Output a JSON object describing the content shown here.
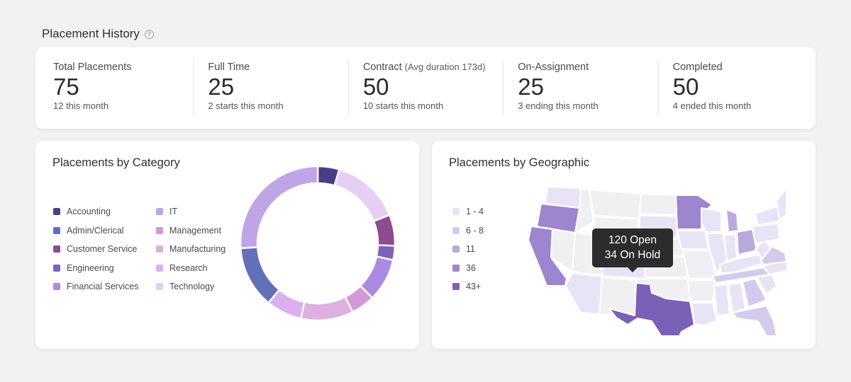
{
  "page": {
    "title": "Placement History",
    "help_icon": "question-circle-icon"
  },
  "stats": [
    {
      "label": "Total Placements",
      "note": "",
      "value": "75",
      "sub": "12 this month"
    },
    {
      "label": "Full Time",
      "note": "",
      "value": "25",
      "sub": "2 starts this month"
    },
    {
      "label": "Contract",
      "note": "(Avg duration 173d)",
      "value": "50",
      "sub": "10 starts this month"
    },
    {
      "label": "On-Assignment",
      "note": "",
      "value": "25",
      "sub": "3 ending this month"
    },
    {
      "label": "Completed",
      "note": "",
      "value": "50",
      "sub": "4 ended this month"
    }
  ],
  "category": {
    "title": "Placements by Category",
    "legend": [
      {
        "label": "Accounting",
        "color": "#4a3f86"
      },
      {
        "label": "Admin/Clerical",
        "color": "#6270b8"
      },
      {
        "label": "Customer Service",
        "color": "#8e4b8f"
      },
      {
        "label": "Engineering",
        "color": "#7a63b8"
      },
      {
        "label": "Financial Services",
        "color": "#ab8be2"
      },
      {
        "label": "IT",
        "color": "#bfa5e6"
      },
      {
        "label": "Management",
        "color": "#d398d6"
      },
      {
        "label": "Manufacturing",
        "color": "#ddb0e0"
      },
      {
        "label": "Research",
        "color": "#dcb0ef"
      },
      {
        "label": "Technology",
        "color": "#e6cff5"
      }
    ]
  },
  "chart_data": {
    "type": "pie",
    "variant": "donut",
    "categories": [
      "Accounting",
      "Technology",
      "Customer Service",
      "Engineering",
      "Financial Services",
      "Management",
      "Manufacturing",
      "Research",
      "Admin/Clerical",
      "IT"
    ],
    "values": [
      4.5,
      14.5,
      6.5,
      3,
      9,
      5,
      11,
      7.5,
      13,
      26
    ],
    "colors": [
      "#4a3f86",
      "#e6cff5",
      "#8e4b8f",
      "#7a63b8",
      "#ab8be2",
      "#d398d6",
      "#ddb0e0",
      "#dcb0ef",
      "#6270b8",
      "#bfa5e6"
    ]
  },
  "geo": {
    "title": "Placements by Geographic",
    "legend": [
      {
        "label": "1 - 4",
        "color": "#e8e4f6"
      },
      {
        "label": "6 - 8",
        "color": "#d4cbec"
      },
      {
        "label": "11",
        "color": "#b9aadc"
      },
      {
        "label": "36",
        "color": "#9d86cf"
      },
      {
        "label": "43+",
        "color": "#7b60b8"
      }
    ],
    "tooltip": {
      "line1": "120 Open",
      "line2": "34 On Hold"
    }
  }
}
